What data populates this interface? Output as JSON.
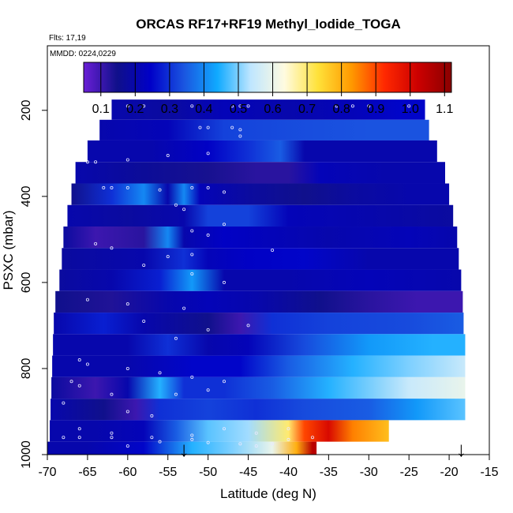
{
  "chart_data": {
    "type": "heatmap",
    "title": "ORCAS RF17+RF19 Methyl_Iodide_TOGA",
    "subtitle": "Flts: 17,19",
    "annotation": "MMDD: 0224,0229",
    "xlabel": "Latitude (deg N)",
    "ylabel": "PSXC (mbar)",
    "xlim": [
      -70,
      -15
    ],
    "ylim": [
      1000,
      50
    ],
    "y_reversed": true,
    "xticks": [
      -70,
      -65,
      -60,
      -55,
      -50,
      -45,
      -40,
      -35,
      -30,
      -25,
      -20,
      -15
    ],
    "yticks": [
      200,
      400,
      600,
      800,
      1000
    ],
    "colorbar": {
      "min": 0.05,
      "max": 1.12,
      "ticks": [
        0.1,
        0.2,
        0.3,
        0.4,
        0.5,
        0.6,
        0.7,
        0.8,
        0.9,
        1.0,
        1.1
      ],
      "tick_labels": [
        "0.1",
        "0.2",
        "0.3",
        "0.4",
        "0.5",
        "0.6",
        "0.7",
        "0.8",
        "0.9",
        "1.0",
        "1.1"
      ],
      "colors": [
        "#6a1fd6",
        "#10108a",
        "#0000c8",
        "#1a55e0",
        "#10aaff",
        "#bfe6ff",
        "#fffbe0",
        "#ffe23a",
        "#ff9a00",
        "#ff2800",
        "#cc0000",
        "#8a0000"
      ]
    },
    "bands": [
      {
        "p_top": 175,
        "p_bot": 222,
        "lat_start": -62,
        "lat_end": -23,
        "segments": [
          [
            -62,
            0.2
          ],
          [
            -55,
            0.18
          ],
          [
            -48,
            0.22
          ],
          [
            -40,
            0.2
          ],
          [
            -32,
            0.22
          ],
          [
            -26,
            0.25
          ],
          [
            -23,
            0.25
          ]
        ]
      },
      {
        "p_top": 222,
        "p_bot": 270,
        "lat_start": -63.5,
        "lat_end": -22.5,
        "segments": [
          [
            -63.5,
            0.2
          ],
          [
            -55,
            0.22
          ],
          [
            -48,
            0.32
          ],
          [
            -40,
            0.33
          ],
          [
            -30,
            0.34
          ],
          [
            -22.5,
            0.34
          ]
        ]
      },
      {
        "p_top": 270,
        "p_bot": 320,
        "lat_start": -65,
        "lat_end": -21.5,
        "segments": [
          [
            -65,
            0.2
          ],
          [
            -57,
            0.2
          ],
          [
            -50,
            0.24
          ],
          [
            -45,
            0.3
          ],
          [
            -41,
            0.35
          ],
          [
            -38,
            0.2
          ],
          [
            -30,
            0.2
          ],
          [
            -21.5,
            0.2
          ]
        ]
      },
      {
        "p_top": 320,
        "p_bot": 370,
        "lat_start": -66.5,
        "lat_end": -20.5,
        "segments": [
          [
            -66.5,
            0.2
          ],
          [
            -58,
            0.17
          ],
          [
            -50,
            0.14
          ],
          [
            -44,
            0.12
          ],
          [
            -40,
            0.12
          ],
          [
            -36,
            0.22
          ],
          [
            -28,
            0.2
          ],
          [
            -20.5,
            0.2
          ]
        ]
      },
      {
        "p_top": 370,
        "p_bot": 420,
        "lat_start": -67,
        "lat_end": -20,
        "segments": [
          [
            -67,
            0.15
          ],
          [
            -62,
            0.3
          ],
          [
            -58,
            0.4
          ],
          [
            -55,
            0.2
          ],
          [
            -53,
            0.4
          ],
          [
            -51,
            0.22
          ],
          [
            -45,
            0.18
          ],
          [
            -38,
            0.15
          ],
          [
            -32,
            0.18
          ],
          [
            -25,
            0.2
          ],
          [
            -20,
            0.2
          ]
        ]
      },
      {
        "p_top": 420,
        "p_bot": 470,
        "lat_start": -67.5,
        "lat_end": -19.5,
        "segments": [
          [
            -67.5,
            0.2
          ],
          [
            -60,
            0.18
          ],
          [
            -53,
            0.2
          ],
          [
            -50,
            0.32
          ],
          [
            -45,
            0.32
          ],
          [
            -40,
            0.22
          ],
          [
            -30,
            0.2
          ],
          [
            -19.5,
            0.18
          ]
        ]
      },
      {
        "p_top": 470,
        "p_bot": 520,
        "lat_start": -68,
        "lat_end": -19,
        "segments": [
          [
            -68,
            0.18
          ],
          [
            -64,
            0.1
          ],
          [
            -58,
            0.12
          ],
          [
            -55,
            0.4
          ],
          [
            -53,
            0.2
          ],
          [
            -48,
            0.24
          ],
          [
            -42,
            0.22
          ],
          [
            -35,
            0.2
          ],
          [
            -25,
            0.22
          ],
          [
            -19,
            0.2
          ]
        ]
      },
      {
        "p_top": 520,
        "p_bot": 570,
        "lat_start": -68.2,
        "lat_end": -18.8,
        "segments": [
          [
            -68.2,
            0.18
          ],
          [
            -58,
            0.2
          ],
          [
            -53,
            0.3
          ],
          [
            -50,
            0.22
          ],
          [
            -45,
            0.24
          ],
          [
            -38,
            0.25
          ],
          [
            -30,
            0.2
          ],
          [
            -18.8,
            0.2
          ]
        ]
      },
      {
        "p_top": 570,
        "p_bot": 620,
        "lat_start": -68.5,
        "lat_end": -18.5,
        "segments": [
          [
            -68.5,
            0.18
          ],
          [
            -62,
            0.2
          ],
          [
            -56,
            0.28
          ],
          [
            -52,
            0.42
          ],
          [
            -48,
            0.2
          ],
          [
            -40,
            0.2
          ],
          [
            -30,
            0.22
          ],
          [
            -18.5,
            0.2
          ]
        ]
      },
      {
        "p_top": 620,
        "p_bot": 670,
        "lat_start": -69,
        "lat_end": -18.3,
        "segments": [
          [
            -69,
            0.15
          ],
          [
            -62,
            0.13
          ],
          [
            -55,
            0.2
          ],
          [
            -50,
            0.22
          ],
          [
            -44,
            0.2
          ],
          [
            -36,
            0.15
          ],
          [
            -30,
            0.12
          ],
          [
            -24,
            0.1
          ],
          [
            -18.3,
            0.1
          ]
        ]
      },
      {
        "p_top": 670,
        "p_bot": 720,
        "lat_start": -69.2,
        "lat_end": -18.2,
        "segments": [
          [
            -69.2,
            0.2
          ],
          [
            -63,
            0.28
          ],
          [
            -58,
            0.2
          ],
          [
            -50,
            0.15
          ],
          [
            -46,
            0.1
          ],
          [
            -42,
            0.3
          ],
          [
            -35,
            0.32
          ],
          [
            -25,
            0.33
          ],
          [
            -18.2,
            0.35
          ]
        ]
      },
      {
        "p_top": 720,
        "p_bot": 770,
        "lat_start": -69.3,
        "lat_end": -18,
        "segments": [
          [
            -69.3,
            0.2
          ],
          [
            -60,
            0.2
          ],
          [
            -55,
            0.3
          ],
          [
            -50,
            0.2
          ],
          [
            -45,
            0.22
          ],
          [
            -38,
            0.33
          ],
          [
            -30,
            0.42
          ],
          [
            -22,
            0.45
          ],
          [
            -18,
            0.45
          ]
        ]
      },
      {
        "p_top": 770,
        "p_bot": 820,
        "lat_start": -69.4,
        "lat_end": -18,
        "segments": [
          [
            -69.4,
            0.2
          ],
          [
            -60,
            0.2
          ],
          [
            -52,
            0.25
          ],
          [
            -46,
            0.25
          ],
          [
            -40,
            0.35
          ],
          [
            -32,
            0.45
          ],
          [
            -25,
            0.5
          ],
          [
            -18,
            0.55
          ]
        ]
      },
      {
        "p_top": 820,
        "p_bot": 870,
        "lat_start": -69.5,
        "lat_end": -18,
        "segments": [
          [
            -69.5,
            0.18
          ],
          [
            -64,
            0.1
          ],
          [
            -60,
            0.2
          ],
          [
            -56,
            0.45
          ],
          [
            -53,
            0.3
          ],
          [
            -48,
            0.3
          ],
          [
            -42,
            0.35
          ],
          [
            -35,
            0.45
          ],
          [
            -25,
            0.55
          ],
          [
            -18,
            0.6
          ]
        ]
      },
      {
        "p_top": 870,
        "p_bot": 920,
        "lat_start": -69.6,
        "lat_end": -18,
        "segments": [
          [
            -69.6,
            0.2
          ],
          [
            -63,
            0.15
          ],
          [
            -59,
            0.1
          ],
          [
            -56,
            0.3
          ],
          [
            -50,
            0.32
          ],
          [
            -44,
            0.3
          ],
          [
            -38,
            0.33
          ],
          [
            -30,
            0.35
          ],
          [
            -24,
            0.42
          ],
          [
            -18,
            0.48
          ]
        ]
      },
      {
        "p_top": 920,
        "p_bot": 970,
        "lat_start": -69.7,
        "lat_end": -27.5,
        "segments": [
          [
            -69.7,
            0.2
          ],
          [
            -64,
            0.2
          ],
          [
            -58,
            0.22
          ],
          [
            -54,
            0.35
          ],
          [
            -50,
            0.48
          ],
          [
            -45,
            0.52
          ],
          [
            -40,
            0.7
          ],
          [
            -38,
            0.9
          ],
          [
            -35,
            1.0
          ],
          [
            -32,
            0.85
          ],
          [
            -27.5,
            0.78
          ]
        ]
      },
      {
        "p_top": 970,
        "p_bot": 1000,
        "lat_start": -70,
        "lat_end": -36.5,
        "segments": [
          [
            -70,
            0.2
          ],
          [
            -65,
            0.2
          ],
          [
            -58,
            0.25
          ],
          [
            -52,
            0.45
          ],
          [
            -47,
            0.5
          ],
          [
            -42,
            0.6
          ],
          [
            -39,
            0.8
          ],
          [
            -37,
            1.05
          ],
          [
            -36.5,
            1.05
          ]
        ]
      }
    ],
    "markers": [
      {
        "lat": -53,
        "label": "↓"
      },
      {
        "lat": -18.5,
        "label": "↓"
      }
    ],
    "sample_points": [
      [
        -60,
        190
      ],
      [
        -58,
        190
      ],
      [
        -52,
        190
      ],
      [
        -47,
        190
      ],
      [
        -46,
        190
      ],
      [
        -45,
        190
      ],
      [
        -34,
        190
      ],
      [
        -32,
        190
      ],
      [
        -30,
        190
      ],
      [
        -25,
        190
      ],
      [
        -51,
        240
      ],
      [
        -50,
        240
      ],
      [
        -47,
        240
      ],
      [
        -46,
        245
      ],
      [
        -46,
        260
      ],
      [
        -65,
        320
      ],
      [
        -64,
        320
      ],
      [
        -60,
        315
      ],
      [
        -55,
        305
      ],
      [
        -50,
        300
      ],
      [
        -63,
        380
      ],
      [
        -62,
        380
      ],
      [
        -60,
        380
      ],
      [
        -56,
        385
      ],
      [
        -52,
        380
      ],
      [
        -50,
        380
      ],
      [
        -48,
        390
      ],
      [
        -54,
        420
      ],
      [
        -53,
        430
      ],
      [
        -48,
        465
      ],
      [
        -52,
        480
      ],
      [
        -50,
        490
      ],
      [
        -64,
        510
      ],
      [
        -62,
        520
      ],
      [
        -55,
        540
      ],
      [
        -52,
        535
      ],
      [
        -42,
        525
      ],
      [
        -58,
        560
      ],
      [
        -52,
        580
      ],
      [
        -48,
        600
      ],
      [
        -65,
        640
      ],
      [
        -60,
        650
      ],
      [
        -53,
        660
      ],
      [
        -45,
        700
      ],
      [
        -50,
        710
      ],
      [
        -54,
        730
      ],
      [
        -58,
        690
      ],
      [
        -66,
        780
      ],
      [
        -65,
        790
      ],
      [
        -60,
        800
      ],
      [
        -56,
        810
      ],
      [
        -52,
        820
      ],
      [
        -48,
        830
      ],
      [
        -67,
        830
      ],
      [
        -66,
        840
      ],
      [
        -62,
        860
      ],
      [
        -54,
        860
      ],
      [
        -50,
        850
      ],
      [
        -68,
        880
      ],
      [
        -60,
        900
      ],
      [
        -57,
        910
      ],
      [
        -66,
        940
      ],
      [
        -62,
        950
      ],
      [
        -57,
        960
      ],
      [
        -52,
        955
      ],
      [
        -48,
        940
      ],
      [
        -44,
        950
      ],
      [
        -40,
        940
      ],
      [
        -68,
        960
      ],
      [
        -66,
        960
      ],
      [
        -62,
        960
      ],
      [
        -56,
        970
      ],
      [
        -52,
        965
      ],
      [
        -50,
        972
      ],
      [
        -46,
        975
      ],
      [
        -44,
        980
      ],
      [
        -42,
        975
      ],
      [
        -40,
        965
      ],
      [
        -37,
        960
      ],
      [
        -60,
        980
      ]
    ]
  }
}
